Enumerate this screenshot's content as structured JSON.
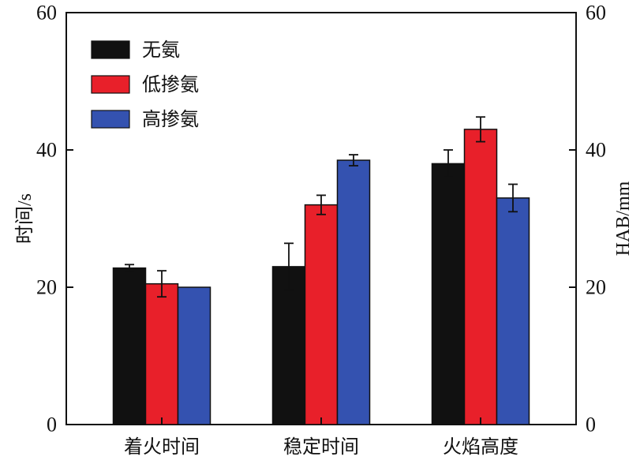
{
  "chart_data": {
    "type": "bar",
    "categories": [
      "着火时间",
      "稳定时间",
      "火焰高度"
    ],
    "series": [
      {
        "name": "无氨",
        "color": "#111111",
        "values": [
          22.8,
          23.0,
          38.0
        ],
        "errors": [
          0.5,
          3.4,
          2.0
        ]
      },
      {
        "name": "低掺氨",
        "color": "#e8202a",
        "values": [
          20.5,
          32.0,
          43.0
        ],
        "errors": [
          1.9,
          1.4,
          1.8
        ]
      },
      {
        "name": "高掺氨",
        "color": "#3452b0",
        "values": [
          20.0,
          38.5,
          33.0
        ],
        "errors": [
          0.0,
          0.8,
          2.0
        ]
      }
    ],
    "ylabel": "时间/s",
    "y2label": "HAB/mm",
    "ylim": [
      0,
      60
    ],
    "y2lim": [
      0,
      60
    ],
    "yticks": [
      0,
      20,
      40,
      60
    ],
    "y2ticks": [
      0,
      20,
      40,
      60
    ],
    "grid": false,
    "legend_position": "top-left"
  }
}
